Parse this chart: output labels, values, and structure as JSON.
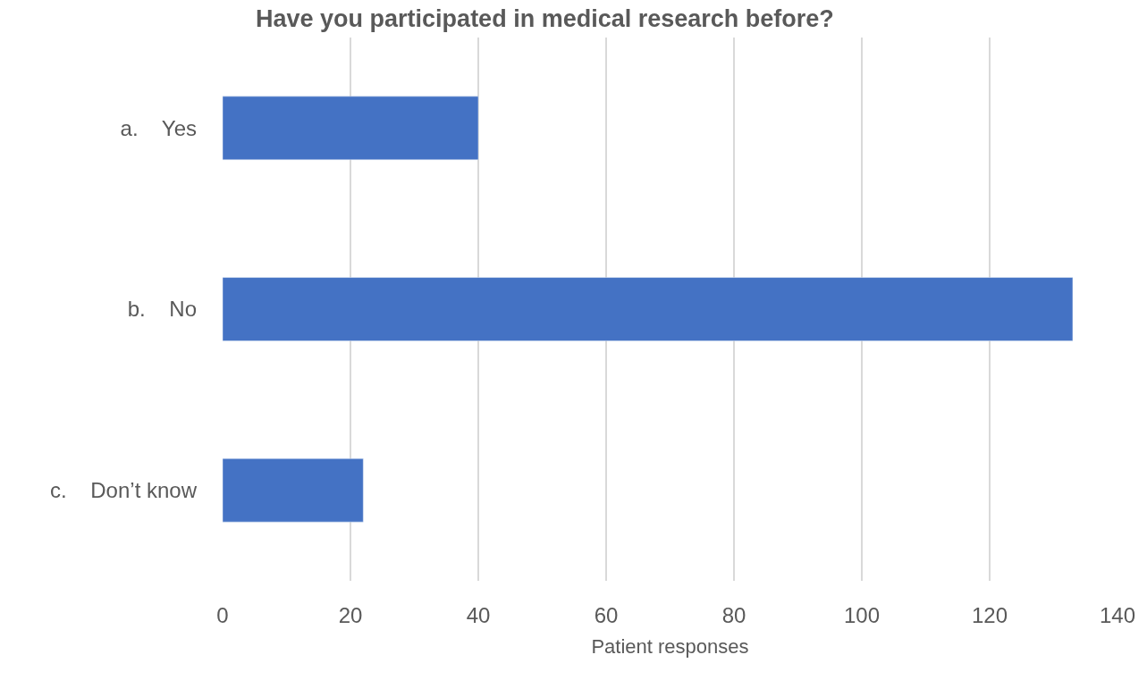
{
  "chart_data": {
    "type": "bar",
    "orientation": "horizontal",
    "title": "Have you participated in medical research before?",
    "categories": [
      "a.    Yes",
      "b.    No",
      "c.    Don’t know"
    ],
    "values": [
      40,
      133,
      22
    ],
    "color": "#4472c4",
    "xlabel": "Patient responses",
    "xlim": [
      0,
      140
    ],
    "xticks": [
      0,
      20,
      40,
      60,
      80,
      100,
      120,
      140
    ],
    "grid": "x"
  }
}
